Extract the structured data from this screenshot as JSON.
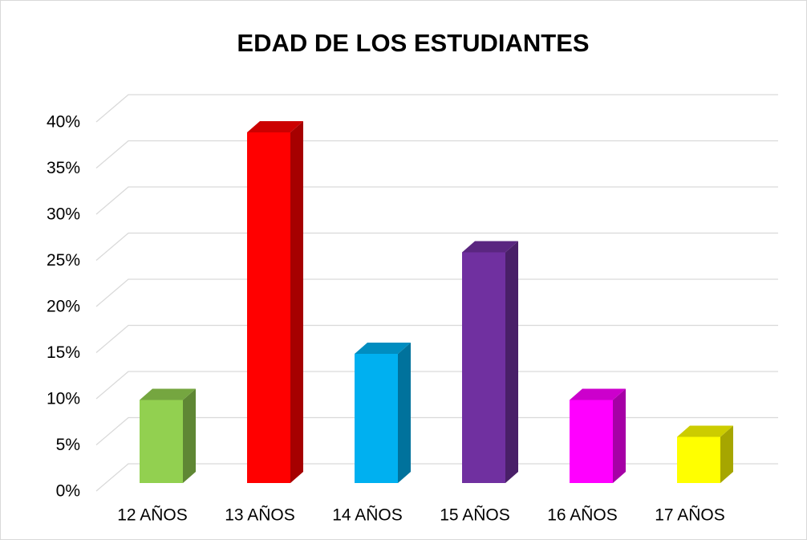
{
  "chart_data": {
    "type": "bar3d",
    "title": "EDAD DE LOS ESTUDIANTES",
    "categories": [
      "12 AÑOS",
      "13 AÑOS",
      "14 AÑOS",
      "15 AÑOS",
      "16 AÑOS",
      "17 AÑOS"
    ],
    "values": [
      9,
      38,
      14,
      25,
      9,
      5
    ],
    "colors": [
      "#92d050",
      "#ff0000",
      "#00b0f0",
      "#7030a0",
      "#ff00ff",
      "#ffff00"
    ],
    "ylim": [
      0,
      40
    ],
    "yticks": [
      {
        "value": 0,
        "label": "0%"
      },
      {
        "value": 5,
        "label": "5%"
      },
      {
        "value": 10,
        "label": "10%"
      },
      {
        "value": 15,
        "label": "15%"
      },
      {
        "value": 20,
        "label": "20%"
      },
      {
        "value": 25,
        "label": "25%"
      },
      {
        "value": 30,
        "label": "30%"
      },
      {
        "value": 35,
        "label": "35%"
      },
      {
        "value": 40,
        "label": "40%"
      }
    ],
    "grid": true
  }
}
